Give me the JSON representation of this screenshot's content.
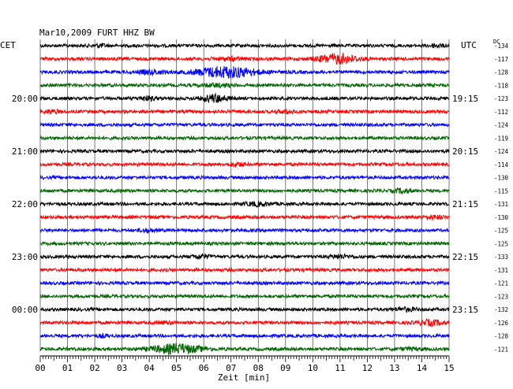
{
  "chart_data": {
    "type": "line",
    "title": "Mar10,2009   FURT HHZ BW",
    "left_timezone": "CET",
    "right_timezone": "UTC",
    "dc_header": "DC",
    "xlabel": "Zeit [min]",
    "x_ticks": [
      "00",
      "01",
      "02",
      "03",
      "04",
      "05",
      "06",
      "07",
      "08",
      "09",
      "10",
      "11",
      "12",
      "13",
      "14",
      "15"
    ],
    "xlim": [
      0,
      15
    ],
    "trace_colors": [
      "#000000",
      "#ff0000",
      "#0000ff",
      "#006400"
    ],
    "left_hour_labels": [
      {
        "trace": 4,
        "text": "20:00"
      },
      {
        "trace": 8,
        "text": "21:00"
      },
      {
        "trace": 12,
        "text": "22:00"
      },
      {
        "trace": 16,
        "text": "23:00"
      },
      {
        "trace": 20,
        "text": "00:00"
      }
    ],
    "right_hour_labels": [
      {
        "trace": 4,
        "text": "19:15"
      },
      {
        "trace": 8,
        "text": "20:15"
      },
      {
        "trace": 12,
        "text": "21:15"
      },
      {
        "trace": 16,
        "text": "22:15"
      },
      {
        "trace": 20,
        "text": "23:15"
      }
    ],
    "dc_offsets": [
      "-134",
      "-117",
      "-128",
      "-118",
      "-123",
      "-112",
      "-124",
      "-119",
      "-124",
      "-114",
      "-130",
      "-115",
      "-131",
      "-130",
      "-125",
      "-125",
      "-133",
      "-131",
      "-121",
      "-123",
      "-132",
      "-126",
      "-128",
      "-121"
    ],
    "events": [
      {
        "trace": 0,
        "minute": 2.2,
        "amp": 1.6,
        "width": 0.25
      },
      {
        "trace": 0,
        "minute": 14.5,
        "amp": 1.5,
        "width": 0.3
      },
      {
        "trace": 1,
        "minute": 6.9,
        "amp": 1.5,
        "width": 0.6
      },
      {
        "trace": 1,
        "minute": 10.9,
        "amp": 5.5,
        "width": 0.7
      },
      {
        "trace": 2,
        "minute": 4.1,
        "amp": 2.2,
        "width": 0.5
      },
      {
        "trace": 2,
        "minute": 6.8,
        "amp": 6.5,
        "width": 1.1
      },
      {
        "trace": 3,
        "minute": 6.5,
        "amp": 1.6,
        "width": 0.5
      },
      {
        "trace": 4,
        "minute": 3.9,
        "amp": 2.2,
        "width": 0.35
      },
      {
        "trace": 4,
        "minute": 6.4,
        "amp": 4.5,
        "width": 0.45
      },
      {
        "trace": 5,
        "minute": 0.4,
        "amp": 1.8,
        "width": 0.3
      },
      {
        "trace": 5,
        "minute": 9.0,
        "amp": 1.8,
        "width": 0.3
      },
      {
        "trace": 9,
        "minute": 7.2,
        "amp": 1.8,
        "width": 0.3
      },
      {
        "trace": 11,
        "minute": 13.3,
        "amp": 2.2,
        "width": 0.3
      },
      {
        "trace": 12,
        "minute": 8.0,
        "amp": 2.0,
        "width": 0.5
      },
      {
        "trace": 13,
        "minute": 14.4,
        "amp": 1.7,
        "width": 0.4
      },
      {
        "trace": 14,
        "minute": 3.9,
        "amp": 1.4,
        "width": 0.3
      },
      {
        "trace": 16,
        "minute": 5.9,
        "amp": 2.3,
        "width": 0.3
      },
      {
        "trace": 16,
        "minute": 11.0,
        "amp": 1.9,
        "width": 0.4
      },
      {
        "trace": 20,
        "minute": 13.4,
        "amp": 1.8,
        "width": 0.45
      },
      {
        "trace": 21,
        "minute": 14.3,
        "amp": 2.8,
        "width": 0.5
      },
      {
        "trace": 21,
        "minute": 4.6,
        "amp": 1.4,
        "width": 0.3
      },
      {
        "trace": 22,
        "minute": 2.3,
        "amp": 1.4,
        "width": 0.2
      },
      {
        "trace": 23,
        "minute": 5.0,
        "amp": 5.5,
        "width": 0.9
      },
      {
        "trace": 23,
        "minute": 13.6,
        "amp": 1.3,
        "width": 0.4
      }
    ]
  }
}
